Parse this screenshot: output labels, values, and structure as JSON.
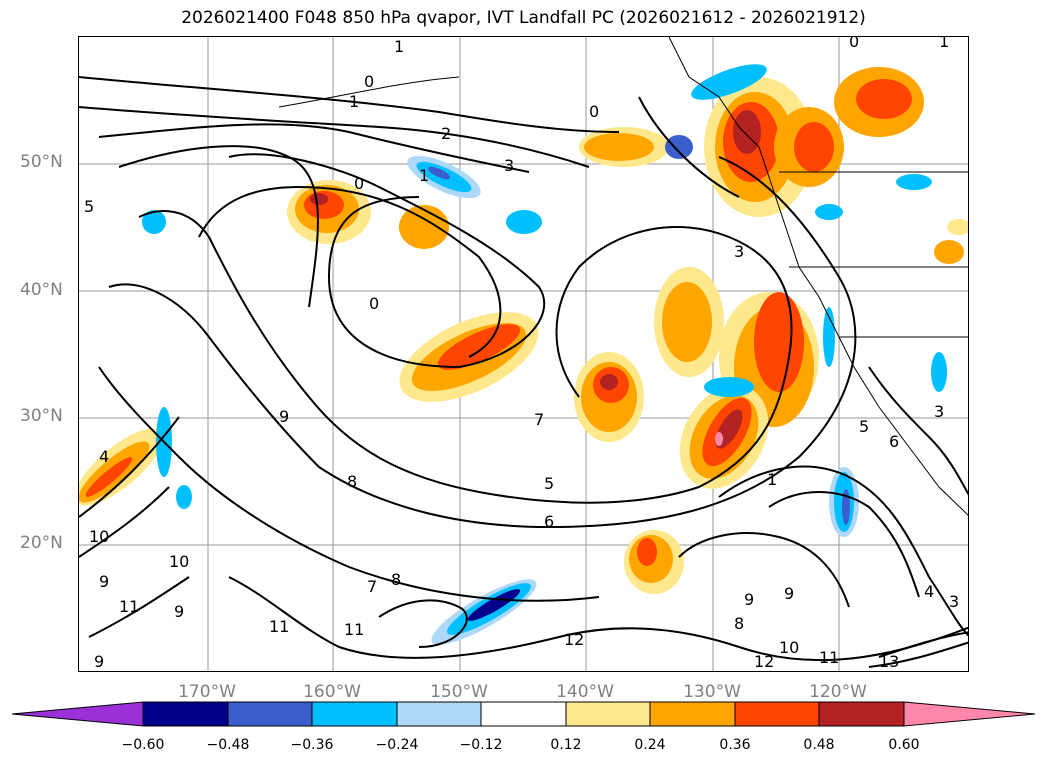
{
  "title": "2026021400 F048 850 hPa qvapor, IVT Landfall PC (2026021612 - 2026021912)",
  "latitude_labels": [
    "50°N",
    "40°N",
    "30°N",
    "20°N"
  ],
  "longitude_labels": [
    "170°W",
    "160°W",
    "150°W",
    "140°W",
    "130°W",
    "120°W"
  ],
  "colorbar": {
    "ticks": [
      "−0.60",
      "−0.48",
      "−0.36",
      "−0.24",
      "−0.12",
      "0.12",
      "0.24",
      "0.36",
      "0.48",
      "0.60"
    ],
    "colors": [
      "#9b30d9",
      "#00008b",
      "#3a5fcd",
      "#00bfff",
      "#add8f7",
      "#ffffff",
      "#ffe88c",
      "#ffa500",
      "#ff4500",
      "#b22222",
      "#ff88aa"
    ]
  },
  "contour_labels": [
    "1",
    "0",
    "1",
    "2",
    "3",
    "5",
    "0",
    "0",
    "1",
    "3",
    "0",
    "7",
    "9",
    "8",
    "5",
    "6",
    "7",
    "8",
    "9",
    "10",
    "11",
    "12",
    "11",
    "12",
    "10",
    "11",
    "13",
    "4",
    "3",
    "9",
    "8",
    "9",
    "10",
    "9",
    "11",
    "9",
    "4",
    "5",
    "6",
    "3",
    "1",
    "0",
    "1"
  ]
}
